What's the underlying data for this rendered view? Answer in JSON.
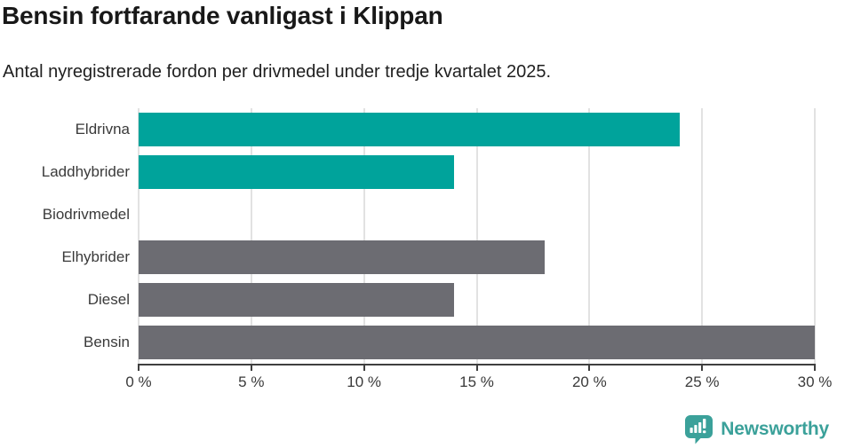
{
  "header": {
    "title": "Bensin fortfarande vanligast i Klippan",
    "subtitle": "Antal nyregistrerade fordon per drivmedel under tredje kvartalet 2025."
  },
  "chart_data": {
    "type": "bar",
    "orientation": "horizontal",
    "title": "Bensin fortfarande vanligast i Klippan",
    "subtitle": "Antal nyregistrerade fordon per drivmedel under tredje kvartalet 2025.",
    "categories": [
      "Eldrivna",
      "Laddhybrider",
      "Biodrivmedel",
      "Elhybrider",
      "Diesel",
      "Bensin"
    ],
    "values": [
      24,
      14,
      0,
      18,
      14,
      30
    ],
    "unit": "%",
    "xlim": [
      0,
      30
    ],
    "xticks": [
      "0 %",
      "5 %",
      "10 %",
      "15 %",
      "20 %",
      "25 %",
      "30 %"
    ],
    "grid": true,
    "legend_position": "none",
    "colors": [
      "#00a39b",
      "#00a39b",
      "#00a39b",
      "#6c6c72",
      "#6c6c72",
      "#6c6c72"
    ],
    "accent_teal": "#00a39b",
    "neutral_gray": "#6c6c72"
  },
  "footer": {
    "brand": "Newsworthy",
    "brand_color": "#3ba19a"
  }
}
